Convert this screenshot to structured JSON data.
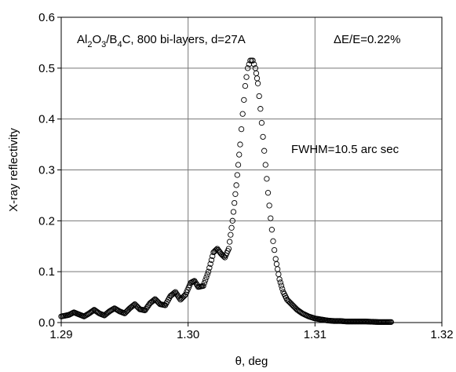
{
  "chart_data": {
    "type": "scatter",
    "title": "",
    "xlabel": "θ, deg",
    "ylabel": "X-ray reflectivity",
    "xlim": [
      1.29,
      1.32
    ],
    "ylim": [
      0.0,
      0.6
    ],
    "x_ticks": [
      "1.29",
      "1.30",
      "1.31",
      "1.32"
    ],
    "x_tick_values": [
      1.29,
      1.3,
      1.31,
      1.32
    ],
    "y_ticks": [
      "0.0",
      "0.1",
      "0.2",
      "0.3",
      "0.4",
      "0.5",
      "0.6"
    ],
    "y_tick_values": [
      0.0,
      0.1,
      0.2,
      0.3,
      0.4,
      0.5,
      0.6
    ],
    "grid": true,
    "marker": "open-circle",
    "annotations": {
      "sample": "Al2O3/B4C, 800 bi-layers, d=27A",
      "sample_parts": [
        {
          "t": "Al",
          "sub": false
        },
        {
          "t": "2",
          "sub": true
        },
        {
          "t": "O",
          "sub": false
        },
        {
          "t": "3",
          "sub": true
        },
        {
          "t": "/B",
          "sub": false
        },
        {
          "t": "4",
          "sub": true
        },
        {
          "t": "C, 800 bi-layers, d=27A",
          "sub": false
        }
      ],
      "energy_resolution": "ΔE/E=0.22%",
      "fwhm": "FWHM=10.5 arc sec"
    },
    "series": [
      {
        "points": [
          [
            1.29,
            0.012
          ],
          [
            1.2906,
            0.015
          ],
          [
            1.291,
            0.02
          ],
          [
            1.2914,
            0.016
          ],
          [
            1.2918,
            0.012
          ],
          [
            1.2922,
            0.018
          ],
          [
            1.2926,
            0.025
          ],
          [
            1.293,
            0.018
          ],
          [
            1.2934,
            0.014
          ],
          [
            1.2938,
            0.022
          ],
          [
            1.2942,
            0.028
          ],
          [
            1.2946,
            0.022
          ],
          [
            1.295,
            0.018
          ],
          [
            1.2954,
            0.028
          ],
          [
            1.2958,
            0.036
          ],
          [
            1.2962,
            0.026
          ],
          [
            1.2966,
            0.024
          ],
          [
            1.297,
            0.038
          ],
          [
            1.2974,
            0.046
          ],
          [
            1.2978,
            0.036
          ],
          [
            1.2982,
            0.034
          ],
          [
            1.2986,
            0.052
          ],
          [
            1.299,
            0.06
          ],
          [
            1.2994,
            0.045
          ],
          [
            1.2998,
            0.055
          ],
          [
            1.3002,
            0.078
          ],
          [
            1.3005,
            0.082
          ],
          [
            1.3008,
            0.07
          ],
          [
            1.3012,
            0.072
          ],
          [
            1.3016,
            0.1
          ],
          [
            1.302,
            0.138
          ],
          [
            1.3023,
            0.145
          ],
          [
            1.3026,
            0.135
          ],
          [
            1.3029,
            0.128
          ],
          [
            1.3032,
            0.145
          ],
          [
            1.3035,
            0.2
          ],
          [
            1.3038,
            0.27
          ],
          [
            1.3041,
            0.35
          ],
          [
            1.3043,
            0.41
          ],
          [
            1.3045,
            0.465
          ],
          [
            1.3047,
            0.5
          ],
          [
            1.3049,
            0.515
          ],
          [
            1.3051,
            0.515
          ],
          [
            1.3053,
            0.5
          ],
          [
            1.3055,
            0.47
          ],
          [
            1.3057,
            0.42
          ],
          [
            1.3059,
            0.365
          ],
          [
            1.3061,
            0.31
          ],
          [
            1.3063,
            0.255
          ],
          [
            1.3065,
            0.205
          ],
          [
            1.3067,
            0.16
          ],
          [
            1.3069,
            0.125
          ],
          [
            1.3072,
            0.085
          ],
          [
            1.3075,
            0.06
          ],
          [
            1.3078,
            0.045
          ],
          [
            1.3082,
            0.035
          ],
          [
            1.3086,
            0.025
          ],
          [
            1.309,
            0.018
          ],
          [
            1.3095,
            0.012
          ],
          [
            1.31,
            0.008
          ],
          [
            1.3105,
            0.006
          ],
          [
            1.311,
            0.004
          ],
          [
            1.3115,
            0.003
          ],
          [
            1.312,
            0.003
          ],
          [
            1.3125,
            0.002
          ],
          [
            1.313,
            0.002
          ],
          [
            1.3135,
            0.002
          ],
          [
            1.314,
            0.002
          ],
          [
            1.315,
            0.001
          ],
          [
            1.316,
            0.001
          ]
        ]
      }
    ]
  }
}
